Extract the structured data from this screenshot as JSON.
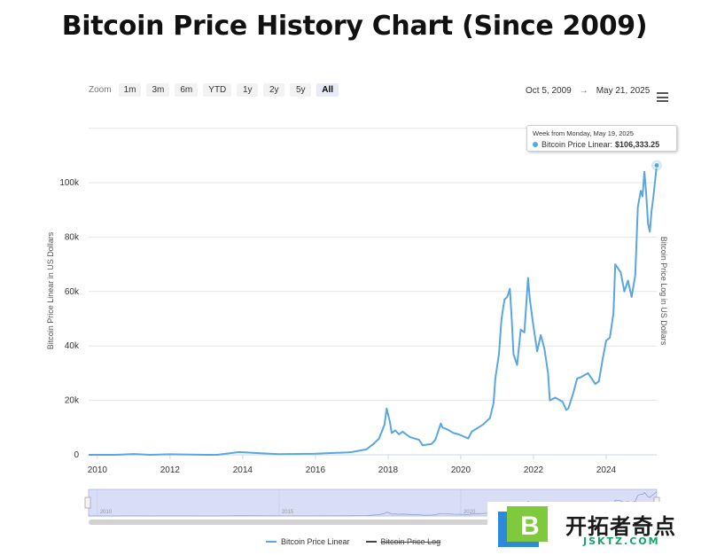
{
  "title": "Bitcoin Price History Chart (Since 2009)",
  "toolbar": {
    "zoom_label": "Zoom",
    "zoom_buttons": [
      "1m",
      "3m",
      "6m",
      "YTD",
      "1y",
      "2y",
      "5y",
      "All"
    ],
    "active_zoom": "All",
    "range_from": "Oct 5, 2009",
    "range_arrow": "→",
    "range_to": "May 21, 2025"
  },
  "tooltip": {
    "header": "Week from Monday, May 19, 2025",
    "series": "Bitcoin Price Linear:",
    "value": "$106,333.25"
  },
  "legend": [
    {
      "label": "Bitcoin Price Linear",
      "color": "#5aa6e0",
      "enabled": true
    },
    {
      "label": "Bitcoin Price Log",
      "color": "#444444",
      "enabled": false
    }
  ],
  "watermark": {
    "name": "开拓者奇点",
    "domain": "JSKTZ.COM",
    "letter": "B"
  },
  "navigator": {
    "tick_labels": [
      "2010",
      "2015",
      "2020"
    ]
  },
  "chart_data": {
    "type": "line",
    "title": "Bitcoin Price History Chart (Since 2009)",
    "xlabel": "",
    "ylabel": "Bitcoin Price Linear in US Dollars",
    "ylabel_right": "Bitcoin Price Log in US Dollars",
    "xlim": [
      2009.76,
      2025.39
    ],
    "ylim": [
      0,
      120000
    ],
    "x_ticks": [
      "2010",
      "2012",
      "2014",
      "2016",
      "2018",
      "2020",
      "2022",
      "2024"
    ],
    "y_ticks": [
      "0",
      "20k",
      "40k",
      "60k",
      "80k",
      "100k"
    ],
    "grid": true,
    "legend_position": "bottom-center",
    "series": [
      {
        "name": "Bitcoin Price Linear",
        "color": "#5aa6e0",
        "x": [
          2009.76,
          2010.5,
          2011.0,
          2011.45,
          2012.0,
          2013.0,
          2013.3,
          2013.9,
          2014.5,
          2015.0,
          2016.0,
          2016.9,
          2017.0,
          2017.4,
          2017.6,
          2017.75,
          2017.9,
          2017.96,
          2018.05,
          2018.1,
          2018.2,
          2018.3,
          2018.4,
          2018.6,
          2018.85,
          2018.95,
          2019.2,
          2019.3,
          2019.45,
          2019.5,
          2019.6,
          2019.8,
          2019.95,
          2020.2,
          2020.3,
          2020.6,
          2020.8,
          2020.9,
          2020.95,
          2021.05,
          2021.12,
          2021.2,
          2021.28,
          2021.35,
          2021.4,
          2021.45,
          2021.55,
          2021.65,
          2021.75,
          2021.85,
          2021.9,
          2022.0,
          2022.1,
          2022.2,
          2022.3,
          2022.4,
          2022.45,
          2022.6,
          2022.8,
          2022.9,
          2022.96,
          2023.1,
          2023.2,
          2023.3,
          2023.5,
          2023.7,
          2023.8,
          2023.9,
          2024.0,
          2024.1,
          2024.2,
          2024.25,
          2024.4,
          2024.5,
          2024.6,
          2024.7,
          2024.8,
          2024.87,
          2024.95,
          2025.0,
          2025.05,
          2025.1,
          2025.15,
          2025.2,
          2025.25,
          2025.3,
          2025.39
        ],
        "y": [
          0,
          0,
          300,
          0,
          200,
          0,
          0,
          1000,
          600,
          250,
          400,
          900,
          1000,
          2000,
          4000,
          6000,
          11000,
          17000,
          12000,
          8000,
          9000,
          7500,
          8500,
          6500,
          5500,
          3500,
          4000,
          5500,
          11500,
          10000,
          9500,
          8000,
          7500,
          6000,
          8500,
          11000,
          13500,
          19000,
          28000,
          37000,
          50000,
          57000,
          58000,
          61000,
          50000,
          37000,
          33000,
          46000,
          45000,
          65000,
          57000,
          47000,
          38000,
          44000,
          39000,
          30000,
          20000,
          21000,
          19500,
          16500,
          17000,
          23000,
          28000,
          28500,
          30000,
          26000,
          27000,
          35000,
          42000,
          43000,
          52000,
          70000,
          67000,
          60000,
          64000,
          58000,
          66000,
          91000,
          97000,
          95000,
          104000,
          96000,
          85000,
          82000,
          90000,
          95000,
          106333
        ]
      }
    ],
    "annotations": [
      {
        "label": "Week from Monday, May 19, 2025",
        "value": 106333.25
      }
    ]
  }
}
